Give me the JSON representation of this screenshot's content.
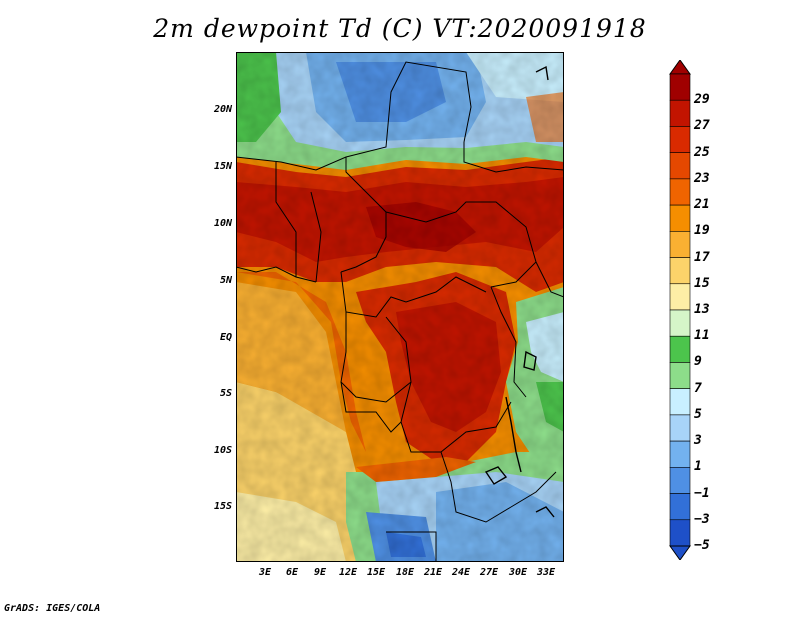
{
  "title": "2m dewpoint Td (C) VT:2020091918",
  "credit": "GrADS: IGES/COLA",
  "lat_labels": [
    "20N",
    "15N",
    "10N",
    "5N",
    "EQ",
    "5S",
    "10S",
    "15S"
  ],
  "lon_labels": [
    "3E",
    "6E",
    "9E",
    "12E",
    "15E",
    "18E",
    "21E",
    "24E",
    "27E",
    "30E",
    "33E"
  ],
  "colorbar": {
    "labels": [
      "29",
      "27",
      "25",
      "23",
      "21",
      "19",
      "17",
      "15",
      "13",
      "11",
      "9",
      "7",
      "5",
      "3",
      "1",
      "−1",
      "−3",
      "−5"
    ],
    "colors": [
      "#a00000",
      "#c21400",
      "#d92a00",
      "#e54800",
      "#f06400",
      "#f58e00",
      "#fab032",
      "#fcd36a",
      "#fdeea6",
      "#d5f5c8",
      "#4cc44c",
      "#8ddd8a",
      "#c9f0ff",
      "#a8d4f8",
      "#73b2ef",
      "#4f90e4",
      "#3270d8",
      "#1e50c8"
    ]
  }
}
